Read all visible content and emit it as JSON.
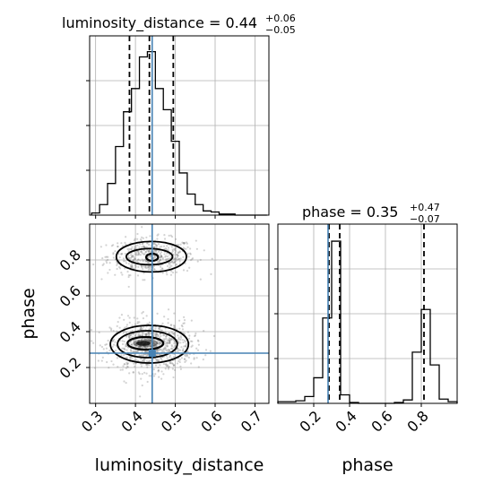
{
  "chart_data": [
    {
      "type": "histogram",
      "panel": "marginal-luminosity_distance",
      "title": {
        "main": "luminosity_distance = 0.44",
        "sup": "+0.06",
        "sub": "−0.05"
      },
      "xlim": [
        0.285,
        0.735
      ],
      "bin_edges": [
        0.29,
        0.31,
        0.33,
        0.35,
        0.37,
        0.39,
        0.41,
        0.43,
        0.45,
        0.47,
        0.49,
        0.51,
        0.53,
        0.55,
        0.57,
        0.59,
        0.61,
        0.63,
        0.65,
        0.67,
        0.69,
        0.71,
        0.73
      ],
      "counts": [
        2,
        10,
        30,
        65,
        98,
        120,
        150,
        155,
        120,
        100,
        70,
        40,
        20,
        10,
        4,
        3,
        1,
        1,
        0,
        0,
        0,
        0
      ],
      "ylim": [
        0,
        170
      ],
      "quantiles": [
        0.385,
        0.435,
        0.495
      ],
      "truth": 0.442,
      "grid": true
    },
    {
      "type": "histogram",
      "panel": "marginal-phase",
      "title": {
        "main": "phase = 0.35",
        "sup": "+0.47",
        "sub": "−0.07"
      },
      "xlim": [
        0.0,
        1.0
      ],
      "xticks": [
        0.2,
        0.4,
        0.6,
        0.8
      ],
      "bin_edges": [
        0.0,
        0.05,
        0.1,
        0.15,
        0.2,
        0.25,
        0.3,
        0.35,
        0.4,
        0.45,
        0.5,
        0.55,
        0.6,
        0.65,
        0.7,
        0.75,
        0.8,
        0.85,
        0.9,
        0.95,
        1.0
      ],
      "counts": [
        2,
        2,
        3,
        8,
        30,
        100,
        190,
        10,
        1,
        0,
        0,
        0,
        0,
        1,
        4,
        60,
        110,
        45,
        5,
        2
      ],
      "ylim": [
        0,
        210
      ],
      "quantiles": [
        0.285,
        0.345,
        0.815
      ],
      "truth": 0.28,
      "grid": true
    },
    {
      "type": "scatter",
      "panel": "joint-luminosity_distance-phase",
      "xlabel": "luminosity_distance",
      "ylabel": "phase",
      "xlim": [
        0.285,
        0.735
      ],
      "ylim": [
        0.0,
        1.0
      ],
      "xticks": [
        0.3,
        0.4,
        0.5,
        0.6,
        0.7
      ],
      "yticks": [
        0.2,
        0.4,
        0.6,
        0.8
      ],
      "clusters": [
        {
          "x": 0.44,
          "y": 0.82,
          "sx": 0.055,
          "sy": 0.05,
          "n": 520
        },
        {
          "x": 0.44,
          "y": 0.32,
          "sx": 0.05,
          "sy": 0.07,
          "n": 900
        }
      ],
      "contours": [
        {
          "level": 1,
          "blob": "upper",
          "x": 0.442,
          "y": 0.815,
          "rx": 0.015,
          "ry": 0.02
        },
        {
          "level": 2,
          "blob": "upper",
          "x": 0.435,
          "y": 0.818,
          "rx": 0.058,
          "ry": 0.045
        },
        {
          "level": 3,
          "blob": "upper",
          "x": 0.44,
          "y": 0.818,
          "rx": 0.088,
          "ry": 0.085
        },
        {
          "level": 1,
          "blob": "lower",
          "x": 0.425,
          "y": 0.335,
          "rx": 0.045,
          "ry": 0.035
        },
        {
          "level": 2,
          "blob": "lower",
          "x": 0.43,
          "y": 0.33,
          "rx": 0.075,
          "ry": 0.075
        },
        {
          "level": 3,
          "blob": "lower",
          "x": 0.435,
          "y": 0.33,
          "rx": 0.098,
          "ry": 0.105
        }
      ],
      "truth": {
        "x": 0.442,
        "y": 0.28
      },
      "grid": true
    }
  ],
  "colors": {
    "truth": "#4682b4",
    "contour": "#000000",
    "points": "#808080",
    "grid": "#b0b0b0"
  }
}
